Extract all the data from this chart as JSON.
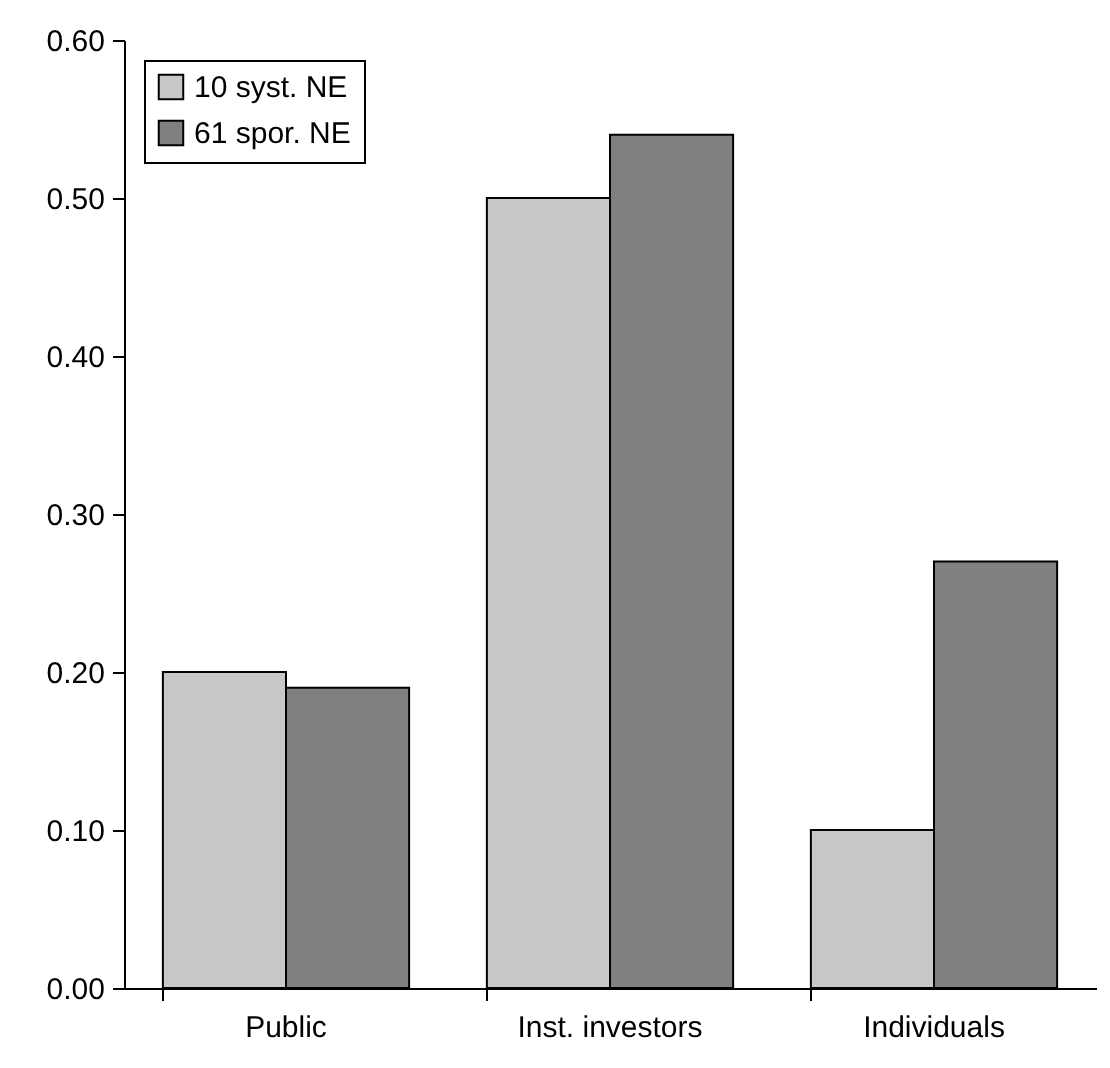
{
  "chart_data": {
    "type": "bar",
    "categories": [
      "Public",
      "Inst. investors",
      "Individuals"
    ],
    "series": [
      {
        "name": "10 syst. NE",
        "color": "#c8c8c8",
        "values": [
          0.2,
          0.5,
          0.1
        ]
      },
      {
        "name": "61 spor. NE",
        "color": "#808080",
        "values": [
          0.19,
          0.54,
          0.27
        ]
      }
    ],
    "ylim": [
      0,
      0.6
    ],
    "yticks": [
      {
        "value": 0,
        "label": "0.00"
      },
      {
        "value": 0.1,
        "label": "0.10"
      },
      {
        "value": 0.2,
        "label": "0.20"
      },
      {
        "value": 0.3,
        "label": "0.30"
      },
      {
        "value": 0.4,
        "label": "0.40"
      },
      {
        "value": 0.5,
        "label": "0.50"
      },
      {
        "value": 0.6,
        "label": "0.60"
      }
    ],
    "legend": "top left",
    "grid": false
  }
}
